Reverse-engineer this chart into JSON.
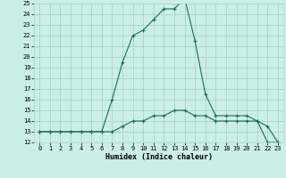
{
  "xlabel": "Humidex (Indice chaleur)",
  "bg_color": "#cceee8",
  "grid_color": "#aad4cc",
  "line_color": "#1a6b5a",
  "line1_x": [
    0,
    1,
    2,
    3,
    4,
    5,
    6,
    7,
    8,
    9,
    10,
    11,
    12,
    13,
    14,
    15,
    16,
    17,
    18,
    19,
    20,
    21,
    22,
    23
  ],
  "line1_y": [
    13,
    13,
    13,
    13,
    13,
    13,
    13,
    16,
    19.5,
    22,
    22.5,
    23.5,
    24.5,
    24.5,
    25.5,
    21.5,
    16.5,
    14.5,
    14.5,
    14.5,
    14.5,
    14,
    13.5,
    12
  ],
  "line2_x": [
    0,
    1,
    2,
    3,
    4,
    5,
    6,
    7,
    8,
    9,
    10,
    11,
    12,
    13,
    14,
    15,
    16,
    17,
    18,
    19,
    20,
    21,
    22,
    23
  ],
  "line2_y": [
    13,
    13,
    13,
    13,
    13,
    13,
    13,
    13,
    13.5,
    14,
    14,
    14.5,
    14.5,
    15,
    15,
    14.5,
    14.5,
    14,
    14,
    14,
    14,
    14,
    12,
    12
  ],
  "ylim": [
    12,
    25
  ],
  "xlim": [
    -0.5,
    23.5
  ],
  "yticks": [
    12,
    13,
    14,
    15,
    16,
    17,
    18,
    19,
    20,
    21,
    22,
    23,
    24,
    25
  ],
  "xticks": [
    0,
    1,
    2,
    3,
    4,
    5,
    6,
    7,
    8,
    9,
    10,
    11,
    12,
    13,
    14,
    15,
    16,
    17,
    18,
    19,
    20,
    21,
    22,
    23
  ],
  "marker": "+",
  "tick_fontsize": 5.0,
  "xlabel_fontsize": 6.0
}
